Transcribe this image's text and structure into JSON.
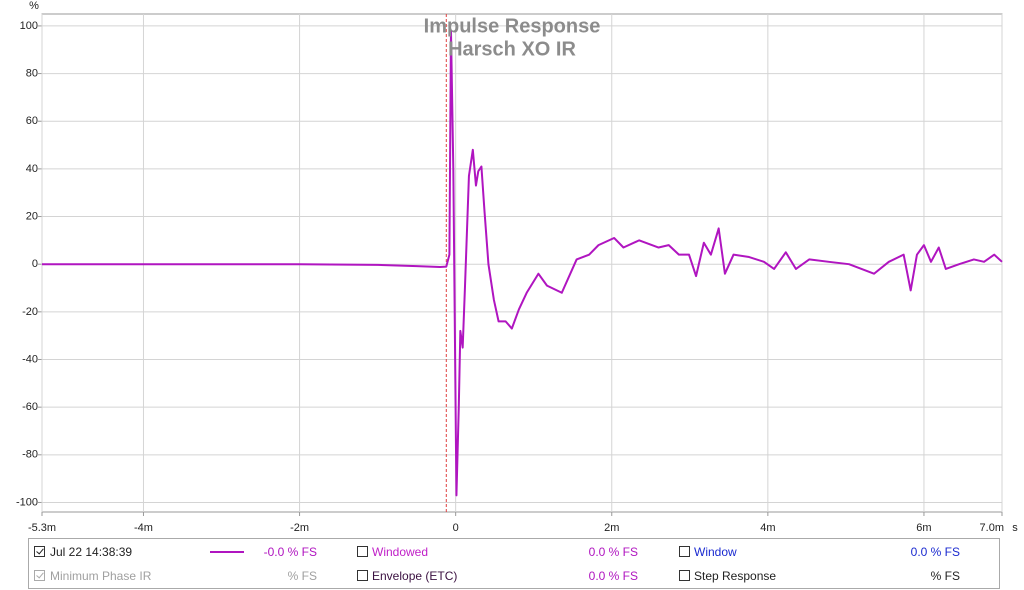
{
  "chart_data": {
    "type": "line",
    "title": "Impulse Response",
    "subtitle": "Harsch XO IR",
    "y_unit": "%",
    "x_unit": "s",
    "x": [
      -5.3,
      -4,
      -2,
      -1,
      -0.5,
      -0.2,
      -0.12,
      -0.08,
      -0.06,
      -0.03,
      0.01,
      0.04,
      0.06,
      0.09,
      0.12,
      0.17,
      0.22,
      0.26,
      0.29,
      0.33,
      0.37,
      0.42,
      0.49,
      0.55,
      0.64,
      0.72,
      0.81,
      0.91,
      1.06,
      1.17,
      1.36,
      1.55,
      1.71,
      1.83,
      2.03,
      2.15,
      2.35,
      2.6,
      2.73,
      2.86,
      2.99,
      3.08,
      3.18,
      3.27,
      3.37,
      3.45,
      3.56,
      3.76,
      3.95,
      4.08,
      4.23,
      4.36,
      4.53,
      4.78,
      5.04,
      5.36,
      5.55,
      5.74,
      5.83,
      5.91,
      6.0,
      6.09,
      6.19,
      6.28,
      6.45,
      6.64,
      6.77,
      6.9,
      7.0
    ],
    "series": [
      {
        "name": "Jul 22 14:38:39",
        "color": "#b015c0",
        "values": [
          0,
          0,
          0,
          -0.3,
          -0.8,
          -1.2,
          -1,
          4,
          98,
          40,
          -97,
          -60,
          -28,
          -35,
          -9,
          37,
          48,
          33,
          39,
          41,
          22,
          0,
          -15,
          -24,
          -24,
          -27,
          -19,
          -12,
          -4,
          -9,
          -12,
          2,
          4,
          8,
          11,
          7,
          10,
          7,
          8,
          4,
          4,
          -5,
          9,
          4,
          15,
          -4,
          4,
          3,
          1,
          -2,
          5,
          -2,
          2,
          1,
          0,
          -4,
          1,
          4,
          -11,
          4,
          8,
          1,
          7,
          -2,
          0,
          2,
          1,
          4,
          1
        ]
      }
    ],
    "xlim": [
      -5.3,
      7.0
    ],
    "ylim": [
      -104,
      105
    ],
    "xticks": [
      {
        "value": -5.3,
        "label": "-5.3m"
      },
      {
        "value": -4,
        "label": "-4m"
      },
      {
        "value": -2,
        "label": "-2m"
      },
      0,
      {
        "value": 2,
        "label": "2m"
      },
      {
        "value": 4,
        "label": "4m"
      },
      {
        "value": 6,
        "label": "6m"
      },
      {
        "value": 7.0,
        "label": "7.0m"
      }
    ],
    "yticks": [
      -100,
      -80,
      -60,
      -40,
      -20,
      0,
      20,
      40,
      60,
      80,
      100
    ],
    "grid": true,
    "reference_line_x": -0.12,
    "reference_color": "#e04040"
  },
  "legend_panel": {
    "items": [
      {
        "label": "Jul 22 14:38:39",
        "value": "-0.0 % FS"
      },
      {
        "label": "Windowed",
        "value": "0.0 % FS"
      },
      {
        "label": "Window",
        "value": "0.0 % FS"
      },
      {
        "label": "Minimum Phase IR",
        "value": "% FS"
      },
      {
        "label": "Envelope (ETC)",
        "value": "0.0 % FS"
      },
      {
        "label": "Step Response",
        "value": "% FS"
      }
    ]
  }
}
